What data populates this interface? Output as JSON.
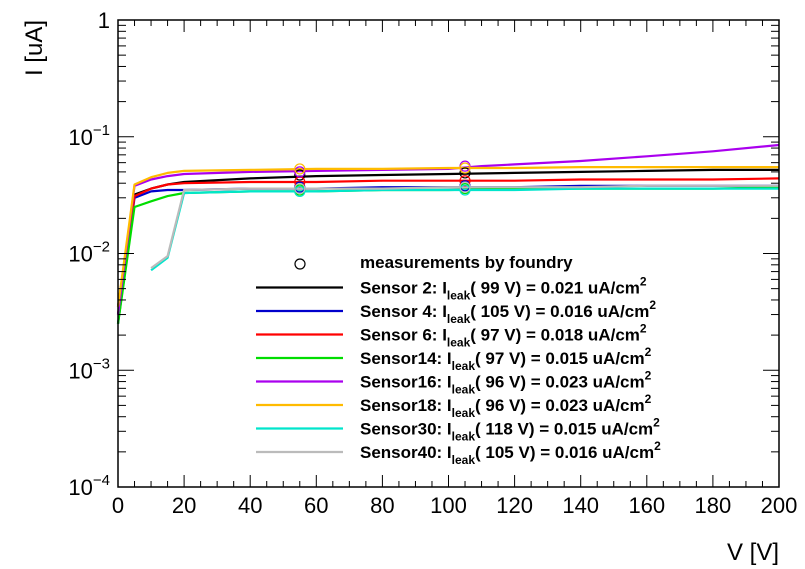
{
  "chart_data": {
    "type": "line",
    "title": "",
    "xlabel": "V [V]",
    "ylabel": "I [uA]",
    "xlim": [
      0,
      200
    ],
    "ylim": [
      0.0001,
      1
    ],
    "yscale": "log",
    "grid": false,
    "legend_placement": "bottom-right",
    "x_ticks": [
      "0",
      "20",
      "40",
      "60",
      "80",
      "100",
      "120",
      "140",
      "160",
      "180",
      "200"
    ],
    "y_ticks": [
      {
        "value": 1,
        "base": "1",
        "exp": ""
      },
      {
        "value": 0.1,
        "base": "10",
        "exp": "−1"
      },
      {
        "value": 0.01,
        "base": "10",
        "exp": "−2"
      },
      {
        "value": 0.001,
        "base": "10",
        "exp": "−3"
      },
      {
        "value": 0.0001,
        "base": "10",
        "exp": "−4"
      }
    ],
    "measurement_label": "measurements by foundry",
    "series": [
      {
        "name": "Sensor 2",
        "legend_prefix": "Sensor 2: I",
        "legend_sub": "leak",
        "legend_suffix": "(  99 V) = 0.021 uA/cm",
        "legend_sup": "2",
        "color": "#000000",
        "x": [
          0,
          5,
          10,
          15,
          20,
          40,
          60,
          80,
          100,
          120,
          140,
          160,
          180,
          200
        ],
        "y": [
          0.0035,
          0.032,
          0.036,
          0.039,
          0.041,
          0.044,
          0.046,
          0.047,
          0.048,
          0.049,
          0.05,
          0.051,
          0.052,
          0.052
        ],
        "measurements": [
          [
            55,
            0.047
          ],
          [
            105,
            0.049
          ]
        ]
      },
      {
        "name": "Sensor 4",
        "legend_prefix": "Sensor 4: I",
        "legend_sub": "leak",
        "legend_suffix": "( 105 V) = 0.016 uA/cm",
        "legend_sup": "2",
        "color": "#0000cc",
        "x": [
          0,
          5,
          10,
          15,
          20,
          40,
          60,
          80,
          100,
          120,
          140,
          160,
          180,
          200
        ],
        "y": [
          0.0025,
          0.03,
          0.034,
          0.035,
          0.035,
          0.036,
          0.036,
          0.037,
          0.037,
          0.037,
          0.038,
          0.038,
          0.038,
          0.038
        ],
        "measurements": [
          [
            55,
            0.037
          ],
          [
            105,
            0.038
          ]
        ]
      },
      {
        "name": "Sensor 6",
        "legend_prefix": "Sensor 6: I",
        "legend_sub": "leak",
        "legend_suffix": "(  97 V) = 0.018 uA/cm",
        "legend_sup": "2",
        "color": "#ff0000",
        "x": [
          0,
          5,
          10,
          15,
          20,
          40,
          60,
          80,
          100,
          120,
          140,
          160,
          180,
          200
        ],
        "y": [
          0.003,
          0.031,
          0.036,
          0.039,
          0.04,
          0.041,
          0.041,
          0.042,
          0.042,
          0.042,
          0.043,
          0.043,
          0.043,
          0.044
        ],
        "measurements": [
          [
            55,
            0.041
          ],
          [
            105,
            0.042
          ]
        ]
      },
      {
        "name": "Sensor14",
        "legend_prefix": "Sensor14: I",
        "legend_sub": "leak",
        "legend_suffix": "(  97 V) = 0.015 uA/cm",
        "legend_sup": "2",
        "color": "#00dd00",
        "x": [
          0,
          5,
          10,
          15,
          20,
          40,
          60,
          80,
          100,
          120,
          140,
          160,
          180,
          200
        ],
        "y": [
          0.0025,
          0.025,
          0.028,
          0.031,
          0.033,
          0.034,
          0.034,
          0.035,
          0.035,
          0.036,
          0.036,
          0.036,
          0.036,
          0.037
        ],
        "measurements": [
          [
            55,
            0.035
          ],
          [
            105,
            0.036
          ]
        ]
      },
      {
        "name": "Sensor16",
        "legend_prefix": "Sensor16: I",
        "legend_sub": "leak",
        "legend_suffix": "(  96 V) = 0.023 uA/cm",
        "legend_sup": "2",
        "color": "#aa00ee",
        "x": [
          0,
          5,
          10,
          15,
          20,
          40,
          60,
          80,
          100,
          110,
          120,
          140,
          160,
          180,
          200
        ],
        "y": [
          0.003,
          0.038,
          0.043,
          0.046,
          0.048,
          0.05,
          0.051,
          0.052,
          0.053,
          0.056,
          0.058,
          0.062,
          0.068,
          0.075,
          0.085
        ],
        "measurements": [
          [
            55,
            0.05
          ],
          [
            105,
            0.056
          ]
        ]
      },
      {
        "name": "Sensor18",
        "legend_prefix": "Sensor18: I",
        "legend_sub": "leak",
        "legend_suffix": "(  96 V) = 0.023 uA/cm",
        "legend_sup": "2",
        "color": "#ffbb00",
        "x": [
          0,
          5,
          10,
          15,
          20,
          40,
          60,
          80,
          100,
          120,
          140,
          160,
          180,
          200
        ],
        "y": [
          0.0035,
          0.039,
          0.045,
          0.049,
          0.051,
          0.052,
          0.053,
          0.053,
          0.054,
          0.054,
          0.055,
          0.055,
          0.055,
          0.055
        ],
        "measurements": [
          [
            55,
            0.053
          ],
          [
            105,
            0.054
          ]
        ]
      },
      {
        "name": "Sensor30",
        "legend_prefix": "Sensor30: I",
        "legend_sub": "leak",
        "legend_suffix": "( 118 V) = 0.015 uA/cm",
        "legend_sup": "2",
        "color": "#00e5cc",
        "x": [
          10,
          15,
          20,
          40,
          60,
          80,
          100,
          120,
          140,
          160,
          180,
          200
        ],
        "y": [
          0.0072,
          0.0092,
          0.033,
          0.034,
          0.034,
          0.035,
          0.035,
          0.035,
          0.036,
          0.036,
          0.036,
          0.036
        ],
        "measurements": [
          [
            55,
            0.034
          ],
          [
            105,
            0.035
          ]
        ]
      },
      {
        "name": "Sensor40",
        "legend_prefix": "Sensor40: I",
        "legend_sub": "leak",
        "legend_suffix": "( 105 V) = 0.016 uA/cm",
        "legend_sup": "2",
        "color": "#bbbbbb",
        "x": [
          10,
          15,
          20,
          40,
          60,
          80,
          100,
          120,
          140,
          160,
          180,
          200
        ],
        "y": [
          0.0075,
          0.0095,
          0.035,
          0.036,
          0.036,
          0.036,
          0.037,
          0.037,
          0.037,
          0.038,
          0.038,
          0.038
        ],
        "measurements": [
          [
            55,
            0.036
          ],
          [
            105,
            0.037
          ]
        ]
      }
    ]
  }
}
